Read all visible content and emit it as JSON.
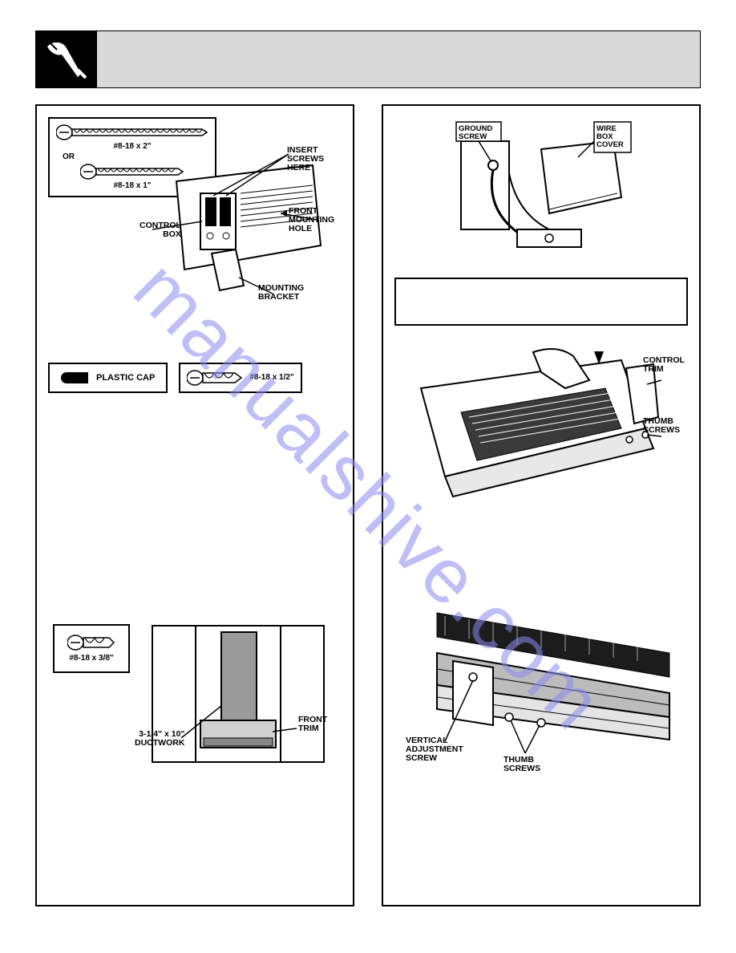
{
  "header": {
    "icon_name": "screwdriver-hand-icon"
  },
  "watermark": {
    "text": "manualshive.com"
  },
  "left_column": {
    "fig1": {
      "screw_top_label": "#8-18 x 2\"",
      "or_label": "OR",
      "screw_bottom_label": "#8-18 x 1\"",
      "callouts": {
        "insert_screws": "INSERT\nSCREWS\nHERE",
        "control_box": "CONTROL\nBOX",
        "front_mounting_hole": "FRONT\nMOUNTING\nHOLE",
        "mounting_bracket": "MOUNTING\nBRACKET"
      }
    },
    "cap_row": {
      "cap_label": "PLASTIC CAP",
      "screw_label": "#8-18 x 1/2\""
    },
    "fig2": {
      "screw_box_label": "#8-18 x 3/8\"",
      "ductwork_label": "3-1/4\" x 10\"\nDUCTWORK",
      "front_trim_label": "FRONT\nTRIM"
    }
  },
  "right_column": {
    "fig_top": {
      "ground_screw": "GROUND\nSCREW",
      "wire_box_cover": "WIRE\nBOX\nCOVER"
    },
    "fig_mid": {
      "control_trim": "CONTROL\nTRIM",
      "thumb_screws": "THUMB\nSCREWS"
    },
    "fig_bot": {
      "vertical_adj": "VERTICAL\nADJUSTMENT\nSCREW",
      "thumb_screws": "THUMB\nSCREWS"
    }
  },
  "colors": {
    "header_gray": "#d9d9d9",
    "black": "#000000",
    "watermark": "#8b8af0"
  }
}
